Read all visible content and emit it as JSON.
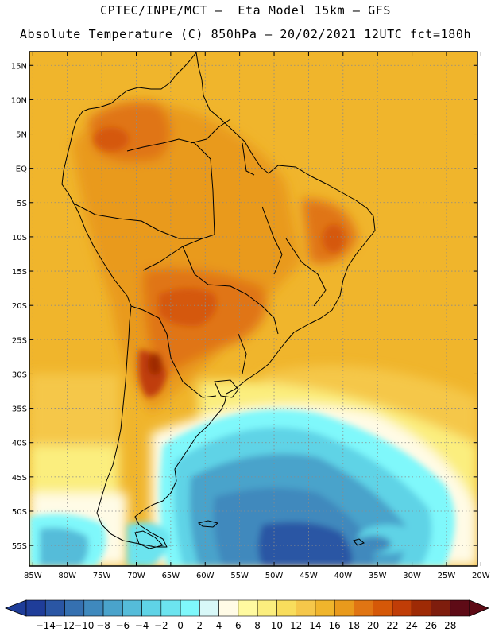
{
  "header": {
    "line1": "CPTEC/INPE/MCT –  Eta Model 15km – GFS",
    "line2": "Absolute Temperature (C) 850hPa – 20/02/2021 12UTC fct=180h"
  },
  "map": {
    "lat_labels": [
      "15N",
      "10N",
      "5N",
      "EQ",
      "5S",
      "10S",
      "15S",
      "20S",
      "25S",
      "30S",
      "35S",
      "40S",
      "45S",
      "50S",
      "55S"
    ],
    "lon_labels": [
      "85W",
      "80W",
      "75W",
      "70W",
      "65W",
      "60W",
      "55W",
      "50W",
      "45W",
      "40W",
      "35W",
      "30W",
      "25W",
      "20W"
    ],
    "lat_range": [
      17,
      -58
    ],
    "lon_range": [
      -85.5,
      -20.5
    ],
    "lat_ticks": [
      15,
      10,
      5,
      0,
      -5,
      -10,
      -15,
      -20,
      -25,
      -30,
      -35,
      -40,
      -45,
      -50,
      -55
    ],
    "lon_ticks": [
      -85,
      -80,
      -75,
      -70,
      -65,
      -60,
      -55,
      -50,
      -45,
      -40,
      -35,
      -30,
      -25,
      -20
    ]
  },
  "colorbar": {
    "labels": [
      "-14",
      "-12",
      "-10",
      "-8",
      "-6",
      "-4",
      "-2",
      "0",
      "2",
      "4",
      "6",
      "8",
      "10",
      "12",
      "14",
      "16",
      "18",
      "20",
      "22",
      "24",
      "26",
      "28"
    ],
    "colors": [
      "#1f3d99",
      "#2a56a4",
      "#3570b0",
      "#3f89bd",
      "#4aa3cb",
      "#55bcd9",
      "#5fd3e6",
      "#6ce4ef",
      "#7ff8fb",
      "#d8f8f8",
      "#fffbe6",
      "#fffaa0",
      "#fbee7e",
      "#f8dd5c",
      "#f5c74a",
      "#f0b52c",
      "#e99a1c",
      "#e07513",
      "#d55808",
      "#c03d07",
      "#9e2a05",
      "#7e1d0d",
      "#5e0b16"
    ]
  }
}
